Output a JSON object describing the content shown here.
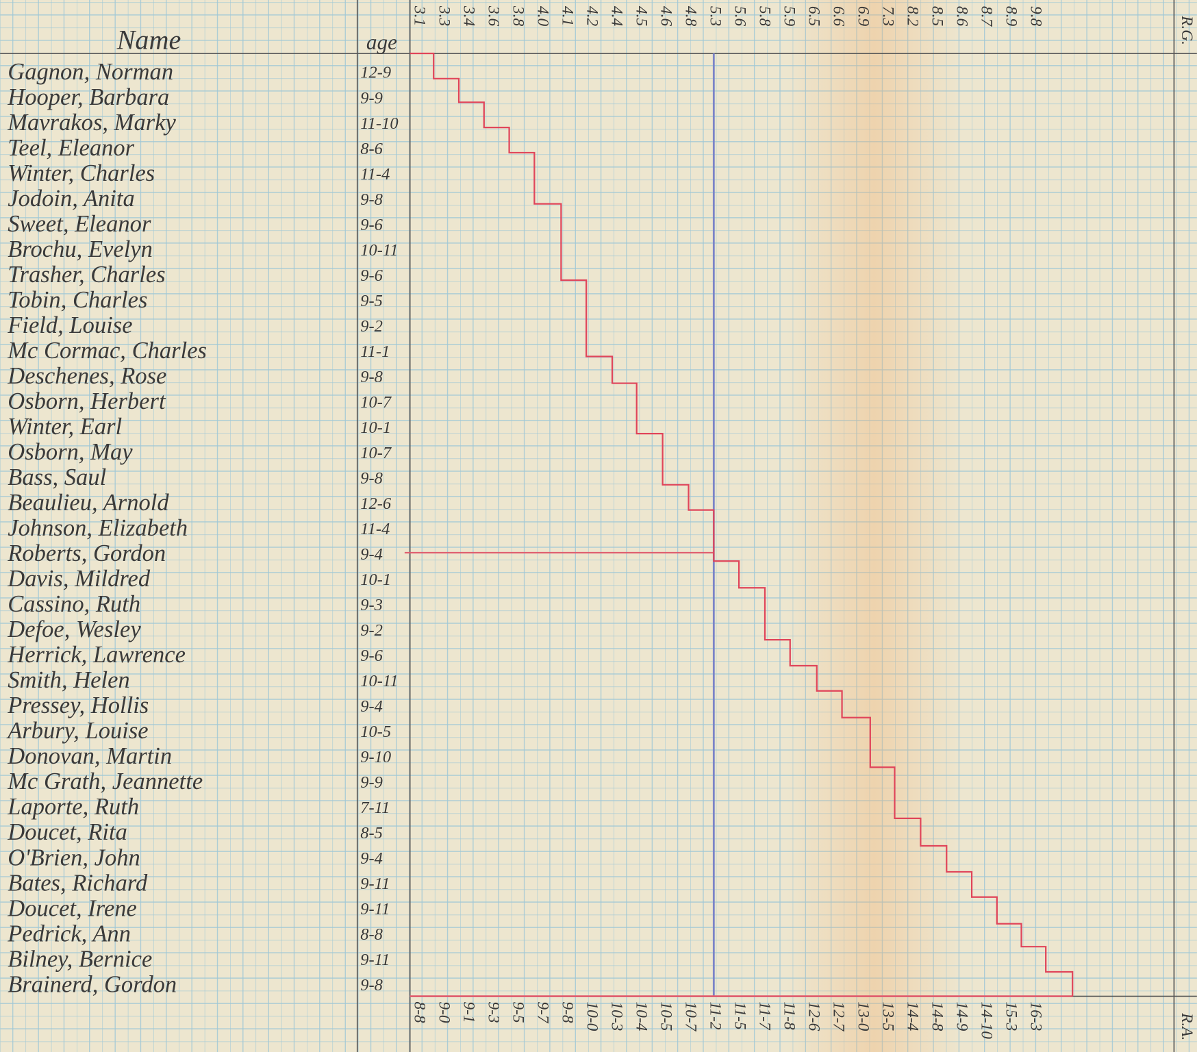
{
  "headers": {
    "name": "Name",
    "age": "age",
    "grade_label": "R.G.",
    "age_label": "R.A."
  },
  "rows": [
    {
      "name": "Gagnon, Norman",
      "age": "12-9"
    },
    {
      "name": "Hooper, Barbara",
      "age": "9-9"
    },
    {
      "name": "Mavrakos, Marky",
      "age": "11-10"
    },
    {
      "name": "Teel, Eleanor",
      "age": "8-6"
    },
    {
      "name": "Winter, Charles",
      "age": "11-4"
    },
    {
      "name": "Jodoin, Anita",
      "age": "9-8"
    },
    {
      "name": "Sweet, Eleanor",
      "age": "9-6"
    },
    {
      "name": "Brochu, Evelyn",
      "age": "10-11"
    },
    {
      "name": "Trasher, Charles",
      "age": "9-6"
    },
    {
      "name": "Tobin, Charles",
      "age": "9-5"
    },
    {
      "name": "Field, Louise",
      "age": "9-2"
    },
    {
      "name": "Mc Cormac, Charles",
      "age": "11-1"
    },
    {
      "name": "Deschenes, Rose",
      "age": "9-8"
    },
    {
      "name": "Osborn, Herbert",
      "age": "10-7"
    },
    {
      "name": "Winter, Earl",
      "age": "10-1"
    },
    {
      "name": "Osborn, May",
      "age": "10-7"
    },
    {
      "name": "Bass, Saul",
      "age": "9-8"
    },
    {
      "name": "Beaulieu, Arnold",
      "age": "12-6"
    },
    {
      "name": "Johnson, Elizabeth",
      "age": "11-4"
    },
    {
      "name": "Roberts, Gordon",
      "age": "9-4"
    },
    {
      "name": "Davis, Mildred",
      "age": "10-1"
    },
    {
      "name": "Cassino, Ruth",
      "age": "9-3"
    },
    {
      "name": "Defoe, Wesley",
      "age": "9-2"
    },
    {
      "name": "Herrick, Lawrence",
      "age": "9-6"
    },
    {
      "name": "Smith, Helen",
      "age": "10-11"
    },
    {
      "name": "Pressey, Hollis",
      "age": "9-4"
    },
    {
      "name": "Arbury, Louise",
      "age": "10-5"
    },
    {
      "name": "Donovan, Martin",
      "age": "9-10"
    },
    {
      "name": "Mc Grath, Jeannette",
      "age": "9-9"
    },
    {
      "name": "Laporte, Ruth",
      "age": "7-11"
    },
    {
      "name": "Doucet, Rita",
      "age": "8-5"
    },
    {
      "name": "O'Brien, John",
      "age": "9-4"
    },
    {
      "name": "Bates, Richard",
      "age": "9-11"
    },
    {
      "name": "Doucet, Irene",
      "age": "9-11"
    },
    {
      "name": "Pedrick, Ann",
      "age": "8-8"
    },
    {
      "name": "Bilney, Bernice",
      "age": "9-11"
    },
    {
      "name": "Brainerd, Gordon",
      "age": "9-8"
    }
  ],
  "grade_scale": [
    "3.1",
    "3.3",
    "3.4",
    "3.6",
    "3.8",
    "4.0",
    "4.1",
    "4.2",
    "4.4",
    "4.5",
    "4.6",
    "4.8",
    "5.3",
    "5.6",
    "5.8",
    "5.9",
    "6.5",
    "6.6",
    "6.9",
    "7.3",
    "8.2",
    "8.5",
    "8.6",
    "8.7",
    "8.9",
    "9.8"
  ],
  "age_scale": [
    "8-8",
    "9-0",
    "9-1",
    "9-3",
    "9-5",
    "9-7",
    "9-8",
    "10-0",
    "10-3",
    "10-4",
    "10-5",
    "10-7",
    "11-2",
    "11-5",
    "11-7",
    "11-8",
    "12-6",
    "12-7",
    "13-0",
    "13-5",
    "14-4",
    "14-8",
    "14-9",
    "14-10",
    "15-3",
    "16-3"
  ]
}
